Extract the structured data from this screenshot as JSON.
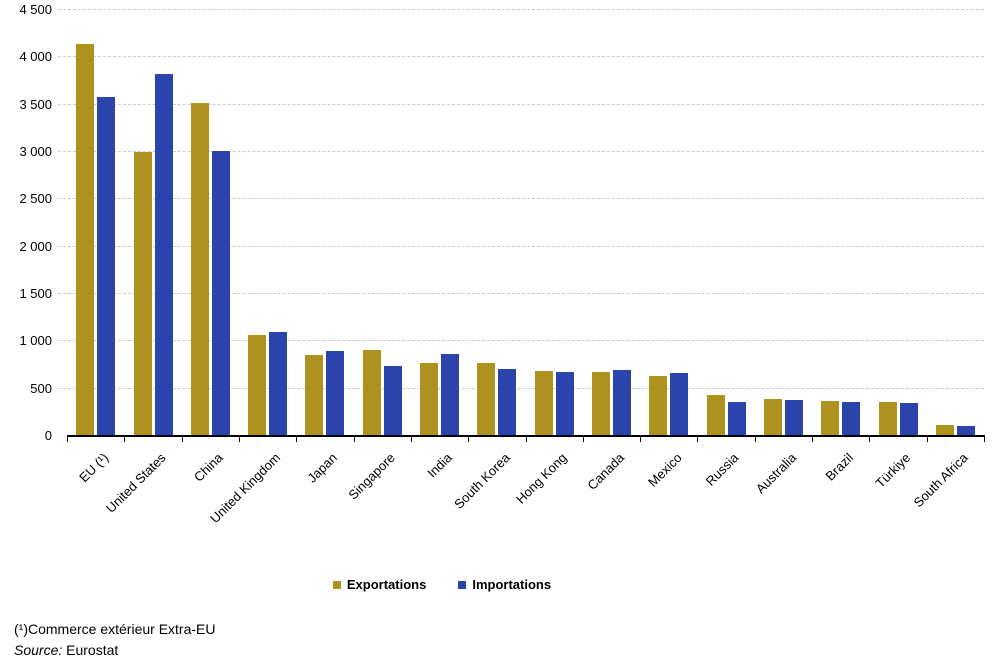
{
  "chart_data": {
    "type": "bar",
    "title": "",
    "categories": [
      "EU (¹)",
      "United States",
      "China",
      "United Kingdom",
      "Japan",
      "Singapore",
      "India",
      "South Korea",
      "Hong Kong",
      "Canada",
      "Mexico",
      "Russia",
      "Australia",
      "Brazil",
      "Türkiye",
      "South Africa"
    ],
    "series": [
      {
        "name": "Exportations",
        "color": "#AD9220",
        "values": [
          4130,
          2985,
          3505,
          1055,
          845,
          895,
          760,
          765,
          675,
          665,
          620,
          425,
          385,
          355,
          345,
          110
        ]
      },
      {
        "name": "Importations",
        "color": "#2B44AC",
        "values": [
          3575,
          3810,
          3000,
          1090,
          890,
          725,
          855,
          700,
          670,
          685,
          655,
          345,
          375,
          345,
          335,
          100
        ]
      }
    ],
    "ylim": [
      0,
      4500
    ],
    "ytick_step": 500,
    "ytick_labels": [
      "0",
      "500",
      "1 000",
      "1 500",
      "2 000",
      "2 500",
      "3 000",
      "3 500",
      "4 000",
      "4 500"
    ],
    "xlabel": "",
    "ylabel": "",
    "grid": "horizontal-dashed",
    "gridline_color": "#c9c9c9",
    "axis_color": "#000000",
    "legend_position": "bottom-center"
  },
  "footer": {
    "footnote": "(¹)Commerce extérieur Extra-EU",
    "source_label": "Source:",
    "source_value": "Eurostat"
  }
}
